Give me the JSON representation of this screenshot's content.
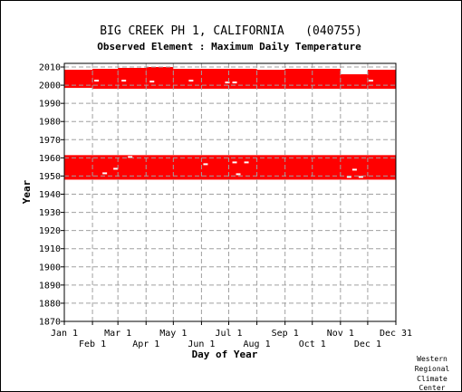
{
  "chart_data": {
    "type": "bar",
    "title": "BIG CREEK PH 1, CALIFORNIA   (040755)",
    "subtitle": "Observed Element : Maximum Daily Temperature",
    "xlabel": "Day of Year",
    "ylabel": "Year",
    "xlim": [
      1,
      366
    ],
    "ylim": [
      1870,
      2012
    ],
    "series_color": "#ff0000",
    "x_ticks_top": [
      {
        "label": "Jan 1",
        "day": 1
      },
      {
        "label": "Mar 1",
        "day": 60
      },
      {
        "label": "May 1",
        "day": 121
      },
      {
        "label": "Jul 1",
        "day": 182
      },
      {
        "label": "Sep 1",
        "day": 244
      },
      {
        "label": "Nov 1",
        "day": 305
      },
      {
        "label": "Dec 31",
        "day": 366
      }
    ],
    "x_ticks_bottom": [
      {
        "label": "Feb 1",
        "day": 32
      },
      {
        "label": "Apr 1",
        "day": 91
      },
      {
        "label": "Jun 1",
        "day": 152
      },
      {
        "label": "Aug 1",
        "day": 213
      },
      {
        "label": "Oct 1",
        "day": 274
      },
      {
        "label": "Dec 1",
        "day": 335
      }
    ],
    "y_ticks": [
      2010,
      2000,
      1990,
      1980,
      1970,
      1960,
      1950,
      1940,
      1930,
      1920,
      1910,
      1900,
      1890,
      1880,
      1870
    ],
    "observed_blocks": [
      {
        "from_day": 1,
        "to_day": 366,
        "from_year": 1948,
        "to_year": 1961.5
      },
      {
        "from_day": 1,
        "to_day": 32,
        "from_year": 1998.5,
        "to_year": 2008.5
      },
      {
        "from_day": 32,
        "to_day": 60,
        "from_year": 1998,
        "to_year": 2009
      },
      {
        "from_day": 60,
        "to_day": 91,
        "from_year": 1998,
        "to_year": 2009.5
      },
      {
        "from_day": 91,
        "to_day": 121,
        "from_year": 1998,
        "to_year": 2010
      },
      {
        "from_day": 121,
        "to_day": 213,
        "from_year": 1998,
        "to_year": 2009
      },
      {
        "from_day": 213,
        "to_day": 244,
        "from_year": 1998,
        "to_year": 2008.5
      },
      {
        "from_day": 244,
        "to_day": 305,
        "from_year": 1998,
        "to_year": 2009
      },
      {
        "from_day": 305,
        "to_day": 335,
        "from_year": 1998,
        "to_year": 2006
      },
      {
        "from_day": 335,
        "to_day": 366,
        "from_year": 1998,
        "to_year": 2008.5
      }
    ],
    "missing_gaps": [
      {
        "day": 36,
        "year": 2002.5
      },
      {
        "day": 66,
        "year": 2002.5
      },
      {
        "day": 97,
        "year": 2002
      },
      {
        "day": 140,
        "year": 2002.5
      },
      {
        "day": 180,
        "year": 2001.5
      },
      {
        "day": 188,
        "year": 2001.5
      },
      {
        "day": 338,
        "year": 2002.5
      },
      {
        "day": 45,
        "year": 1951.5
      },
      {
        "day": 57,
        "year": 1954
      },
      {
        "day": 73,
        "year": 1960.5
      },
      {
        "day": 156,
        "year": 1956.5
      },
      {
        "day": 192,
        "year": 1951
      },
      {
        "day": 201,
        "year": 1957.5
      },
      {
        "day": 188,
        "year": 1957.5
      },
      {
        "day": 314,
        "year": 1949.5
      },
      {
        "day": 320,
        "year": 1953.5
      },
      {
        "day": 327,
        "year": 1949.5
      }
    ]
  },
  "credit": [
    "Western",
    "Regional",
    "Climate",
    "Center"
  ]
}
